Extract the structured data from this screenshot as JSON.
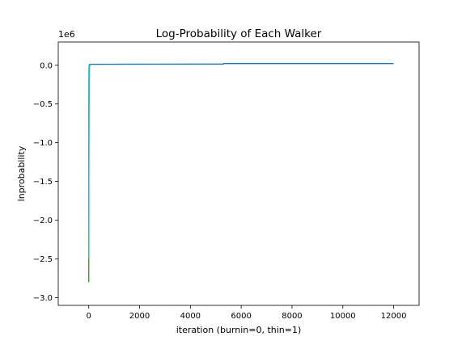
{
  "chart_data": {
    "type": "line",
    "title": "Log-Probability of Each Walker",
    "xlabel": "iteration (burnin=0, thin=1)",
    "ylabel": "lnprobability",
    "y_offset_label": "1e6",
    "xlim": [
      -1200,
      13000
    ],
    "ylim": [
      -3.1,
      0.3
    ],
    "y_scale_note": "values in units of 1e6",
    "xticks": [
      0,
      2000,
      4000,
      6000,
      8000,
      10000,
      12000
    ],
    "xtick_labels": [
      "0",
      "2000",
      "4000",
      "6000",
      "8000",
      "10000",
      "12000"
    ],
    "yticks": [
      0.0,
      -0.5,
      -1.0,
      -1.5,
      -2.0,
      -2.5,
      -3.0
    ],
    "ytick_labels": [
      "0.0",
      "−0.5",
      "−1.0",
      "−1.5",
      "−2.0",
      "−2.5",
      "−3.0"
    ],
    "grid": false,
    "legend": "none",
    "series": [
      {
        "color": "#1f77b4",
        "x": [
          0,
          5,
          10,
          20,
          40,
          60,
          100,
          500,
          2000,
          5300,
          5310,
          8000,
          12000
        ],
        "y": [
          -2.05,
          -0.9,
          -0.05,
          0.005,
          0.01,
          0.012,
          0.013,
          0.013,
          0.014,
          0.015,
          0.022,
          0.022,
          0.022
        ]
      },
      {
        "color": "#2ca02c",
        "x": [
          0,
          3,
          6,
          10,
          20,
          40,
          100
        ],
        "y": [
          -2.8,
          -2.0,
          -1.1,
          -0.3,
          -0.02,
          0.005,
          0.01
        ]
      },
      {
        "color": "#17becf",
        "x": [
          0,
          4,
          8,
          15,
          30,
          60,
          100
        ],
        "y": [
          -2.5,
          -1.5,
          -0.6,
          -0.1,
          -0.01,
          0.008,
          0.012
        ]
      }
    ]
  }
}
